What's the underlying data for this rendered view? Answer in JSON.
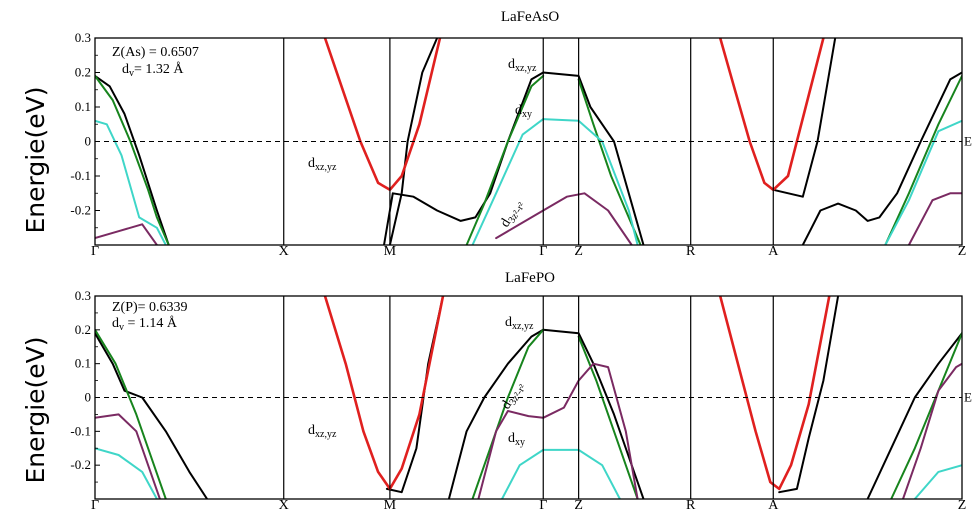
{
  "chart_data": [
    {
      "type": "line",
      "title": "LaFeAsO",
      "ylabel": "Energie(eV)",
      "ylim": [
        -0.3,
        0.3
      ],
      "yticks": [
        "0.3",
        "0.2",
        "0.1",
        "0",
        "-0.1",
        "-0.2"
      ],
      "kpoints": [
        "Γ",
        "X",
        "M",
        "Γ",
        "Z",
        "R",
        "A",
        "Z"
      ],
      "fermi_label": "E",
      "info_lines": [
        "Z(As) = 0.6507",
        "d_v = 1.32 Å"
      ],
      "annotations": [
        {
          "text": "dxz,yz",
          "near": "M"
        },
        {
          "text": "dxz,yz",
          "near": "Γ–Z top"
        },
        {
          "text": "dxy",
          "near": "Γ–Z"
        },
        {
          "text": "d3z²-r²",
          "near": "Γ"
        }
      ],
      "series": [
        {
          "color": "#000000",
          "segments": [
            [
              [
                0,
                0.19
              ],
              [
                0.25,
                0.16
              ],
              [
                0.5,
                0.08
              ],
              [
                0.75,
                -0.04
              ],
              [
                1.05,
                -0.2
              ],
              [
                1.25,
                -0.3
              ]
            ],
            [
              [
                4.9,
                -0.3
              ],
              [
                5.05,
                -0.15
              ],
              [
                5.4,
                -0.16
              ],
              [
                5.8,
                -0.2
              ],
              [
                6.2,
                -0.23
              ],
              [
                6.45,
                -0.22
              ],
              [
                6.7,
                -0.15
              ],
              [
                7.0,
                0.0
              ],
              [
                7.4,
                0.18
              ],
              [
                7.6,
                0.2
              ]
            ],
            [
              [
                7.6,
                0.2
              ],
              [
                8.2,
                0.19
              ],
              [
                8.4,
                0.1
              ],
              [
                8.8,
                0.0
              ],
              [
                9.3,
                -0.3
              ]
            ],
            [
              [
                5.0,
                -0.3
              ],
              [
                5.2,
                -0.15
              ],
              [
                5.3,
                0.0
              ],
              [
                5.55,
                0.2
              ],
              [
                5.8,
                0.3
              ]
            ],
            [
              [
                12.0,
                -0.3
              ],
              [
                12.15,
                -0.25
              ],
              [
                12.3,
                -0.2
              ],
              [
                12.6,
                -0.18
              ],
              [
                12.9,
                -0.2
              ],
              [
                13.1,
                -0.23
              ],
              [
                13.3,
                -0.22
              ],
              [
                13.6,
                -0.15
              ],
              [
                14.0,
                0.0
              ],
              [
                14.5,
                0.18
              ],
              [
                14.7,
                0.2
              ]
            ],
            [
              [
                11.5,
                -0.14
              ],
              [
                12.0,
                -0.16
              ],
              [
                12.25,
                0.0
              ],
              [
                12.55,
                0.3
              ]
            ]
          ]
        },
        {
          "color": "#e0201f",
          "segments": [
            [
              [
                3.9,
                0.3
              ],
              [
                4.2,
                0.15
              ],
              [
                4.5,
                0.0
              ],
              [
                4.8,
                -0.12
              ],
              [
                5.0,
                -0.14
              ],
              [
                5.2,
                -0.1
              ],
              [
                5.5,
                0.05
              ],
              [
                5.85,
                0.3
              ]
            ],
            [
              [
                10.6,
                0.3
              ],
              [
                10.85,
                0.15
              ],
              [
                11.1,
                0.0
              ],
              [
                11.35,
                -0.12
              ],
              [
                11.5,
                -0.14
              ],
              [
                11.75,
                -0.1
              ],
              [
                12.05,
                0.1
              ],
              [
                12.35,
                0.3
              ]
            ]
          ]
        },
        {
          "color": "#17841d",
          "segments": [
            [
              [
                0,
                0.19
              ],
              [
                0.3,
                0.12
              ],
              [
                0.6,
                0.0
              ],
              [
                0.9,
                -0.14
              ],
              [
                1.05,
                -0.22
              ],
              [
                1.25,
                -0.3
              ]
            ],
            [
              [
                6.3,
                -0.3
              ],
              [
                6.6,
                -0.18
              ],
              [
                7.0,
                0.0
              ],
              [
                7.4,
                0.16
              ],
              [
                7.6,
                0.19
              ]
            ],
            [
              [
                8.2,
                0.18
              ],
              [
                8.45,
                0.05
              ],
              [
                8.75,
                -0.1
              ],
              [
                9.0,
                -0.2
              ],
              [
                9.25,
                -0.3
              ]
            ],
            [
              [
                13.4,
                -0.3
              ],
              [
                13.8,
                -0.15
              ],
              [
                14.3,
                0.05
              ],
              [
                14.7,
                0.19
              ]
            ]
          ]
        },
        {
          "color": "#3fd6c8",
          "segments": [
            [
              [
                0,
                0.06
              ],
              [
                0.2,
                0.05
              ],
              [
                0.45,
                -0.04
              ],
              [
                0.75,
                -0.22
              ],
              [
                1.05,
                -0.25
              ],
              [
                1.2,
                -0.3
              ]
            ],
            [
              [
                6.4,
                -0.3
              ],
              [
                6.8,
                -0.15
              ],
              [
                7.25,
                0.02
              ],
              [
                7.6,
                0.065
              ]
            ],
            [
              [
                7.6,
                0.065
              ],
              [
                8.2,
                0.06
              ],
              [
                8.6,
                0.0
              ],
              [
                9.05,
                -0.2
              ],
              [
                9.2,
                -0.3
              ]
            ],
            [
              [
                13.4,
                -0.3
              ],
              [
                13.8,
                -0.17
              ],
              [
                14.3,
                0.03
              ],
              [
                14.7,
                0.06
              ]
            ]
          ]
        },
        {
          "color": "#7a2a62",
          "segments": [
            [
              [
                0,
                -0.28
              ],
              [
                0.4,
                -0.26
              ],
              [
                0.8,
                -0.24
              ],
              [
                1.05,
                -0.3
              ]
            ],
            [
              [
                6.8,
                -0.28
              ],
              [
                7.2,
                -0.24
              ],
              [
                7.6,
                -0.2
              ],
              [
                8.0,
                -0.16
              ],
              [
                8.3,
                -0.15
              ],
              [
                8.7,
                -0.2
              ],
              [
                9.1,
                -0.3
              ]
            ],
            [
              [
                13.8,
                -0.3
              ],
              [
                14.2,
                -0.17
              ],
              [
                14.5,
                -0.15
              ],
              [
                14.7,
                -0.15
              ]
            ]
          ]
        }
      ]
    },
    {
      "type": "line",
      "title": "LaFePO",
      "ylabel": "Energie(eV)",
      "ylim": [
        -0.3,
        0.3
      ],
      "yticks": [
        "0.3",
        "0.2",
        "0.1",
        "0",
        "-0.1",
        "-0.2"
      ],
      "kpoints": [
        "Γ",
        "X",
        "M",
        "Γ",
        "Z",
        "R",
        "A",
        "Z"
      ],
      "fermi_label": "E",
      "info_lines": [
        "Z(P)= 0.6339",
        "d_v = 1.14 Å"
      ],
      "annotations": [
        {
          "text": "dxz,yz",
          "near": "M"
        },
        {
          "text": "dxz,yz",
          "near": "Γ–Z top"
        },
        {
          "text": "dxy",
          "near": "Γ–Z"
        },
        {
          "text": "d3z²-r²",
          "near": "Γ"
        }
      ],
      "series": [
        {
          "color": "#000000",
          "segments": [
            [
              [
                0,
                0.19
              ],
              [
                0.3,
                0.1
              ],
              [
                0.5,
                0.02
              ],
              [
                0.8,
                0.0
              ],
              [
                1.2,
                -0.1
              ],
              [
                1.6,
                -0.22
              ],
              [
                1.9,
                -0.3
              ]
            ],
            [
              [
                6.0,
                -0.3
              ],
              [
                6.3,
                -0.1
              ],
              [
                6.6,
                0.0
              ],
              [
                7.0,
                0.1
              ],
              [
                7.4,
                0.18
              ],
              [
                7.6,
                0.2
              ]
            ],
            [
              [
                7.6,
                0.2
              ],
              [
                8.2,
                0.19
              ],
              [
                8.45,
                0.1
              ],
              [
                8.8,
                -0.05
              ],
              [
                9.2,
                -0.25
              ],
              [
                9.3,
                -0.3
              ]
            ],
            [
              [
                4.95,
                -0.27
              ],
              [
                5.2,
                -0.28
              ],
              [
                5.45,
                -0.15
              ],
              [
                5.65,
                0.1
              ],
              [
                5.9,
                0.3
              ]
            ],
            [
              [
                13.1,
                -0.3
              ],
              [
                13.5,
                -0.15
              ],
              [
                13.9,
                0.0
              ],
              [
                14.3,
                0.1
              ],
              [
                14.7,
                0.19
              ]
            ],
            [
              [
                11.6,
                -0.28
              ],
              [
                11.9,
                -0.27
              ],
              [
                12.1,
                -0.12
              ],
              [
                12.35,
                0.05
              ],
              [
                12.6,
                0.3
              ]
            ]
          ]
        },
        {
          "color": "#e0201f",
          "segments": [
            [
              [
                3.9,
                0.3
              ],
              [
                4.25,
                0.1
              ],
              [
                4.55,
                -0.1
              ],
              [
                4.8,
                -0.22
              ],
              [
                5.0,
                -0.27
              ],
              [
                5.2,
                -0.21
              ],
              [
                5.5,
                -0.05
              ],
              [
                5.9,
                0.3
              ]
            ],
            [
              [
                10.6,
                0.3
              ],
              [
                10.9,
                0.1
              ],
              [
                11.2,
                -0.1
              ],
              [
                11.45,
                -0.25
              ],
              [
                11.6,
                -0.27
              ],
              [
                11.8,
                -0.2
              ],
              [
                12.1,
                -0.02
              ],
              [
                12.45,
                0.3
              ]
            ]
          ]
        },
        {
          "color": "#17841d",
          "segments": [
            [
              [
                0,
                0.2
              ],
              [
                0.35,
                0.1
              ],
              [
                0.7,
                -0.05
              ],
              [
                1.0,
                -0.2
              ],
              [
                1.2,
                -0.3
              ]
            ],
            [
              [
                6.4,
                -0.3
              ],
              [
                6.7,
                -0.15
              ],
              [
                7.0,
                0.0
              ],
              [
                7.35,
                0.15
              ],
              [
                7.6,
                0.2
              ]
            ],
            [
              [
                8.2,
                0.18
              ],
              [
                8.5,
                0.05
              ],
              [
                8.8,
                -0.1
              ],
              [
                9.1,
                -0.25
              ],
              [
                9.2,
                -0.3
              ]
            ],
            [
              [
                13.5,
                -0.3
              ],
              [
                13.9,
                -0.15
              ],
              [
                14.3,
                0.02
              ],
              [
                14.7,
                0.19
              ]
            ]
          ]
        },
        {
          "color": "#3fd6c8",
          "segments": [
            [
              [
                0,
                -0.15
              ],
              [
                0.4,
                -0.17
              ],
              [
                0.8,
                -0.22
              ],
              [
                1.05,
                -0.3
              ]
            ],
            [
              [
                6.9,
                -0.3
              ],
              [
                7.2,
                -0.2
              ],
              [
                7.6,
                -0.155
              ]
            ],
            [
              [
                7.6,
                -0.155
              ],
              [
                8.2,
                -0.155
              ],
              [
                8.6,
                -0.2
              ],
              [
                8.9,
                -0.3
              ]
            ],
            [
              [
                13.9,
                -0.3
              ],
              [
                14.3,
                -0.22
              ],
              [
                14.7,
                -0.2
              ]
            ]
          ]
        },
        {
          "color": "#7a2a62",
          "segments": [
            [
              [
                0,
                -0.06
              ],
              [
                0.4,
                -0.05
              ],
              [
                0.7,
                -0.1
              ],
              [
                1.0,
                -0.25
              ],
              [
                1.1,
                -0.3
              ]
            ],
            [
              [
                6.5,
                -0.3
              ],
              [
                6.8,
                -0.1
              ],
              [
                7.0,
                -0.04
              ],
              [
                7.35,
                -0.055
              ],
              [
                7.6,
                -0.06
              ],
              [
                7.95,
                -0.03
              ],
              [
                8.2,
                0.05
              ],
              [
                8.45,
                0.1
              ],
              [
                8.7,
                0.09
              ],
              [
                9.0,
                -0.1
              ],
              [
                9.2,
                -0.3
              ]
            ],
            [
              [
                13.7,
                -0.3
              ],
              [
                14.0,
                -0.15
              ],
              [
                14.3,
                0.02
              ],
              [
                14.6,
                0.09
              ],
              [
                14.7,
                0.1
              ]
            ]
          ]
        }
      ]
    }
  ]
}
